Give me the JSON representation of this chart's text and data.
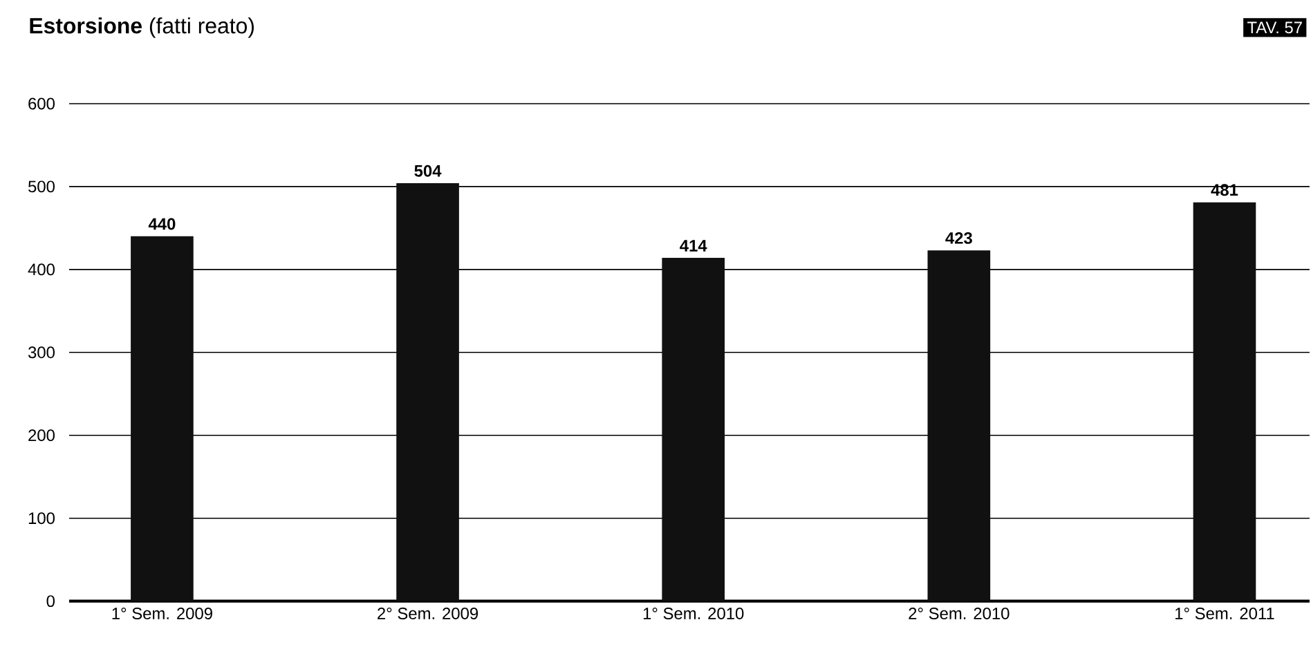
{
  "chart_data": {
    "type": "bar",
    "title": "**Estorsione** (fatti reato)",
    "annotations": [
      "TAV. 57"
    ],
    "categories": [
      "1° Sem. 2009",
      "2° Sem. 2009",
      "1° Sem. 2010",
      "2° Sem. 2010",
      "1° Sem. 2011"
    ],
    "values": [
      440,
      504,
      414,
      423,
      481
    ],
    "color": "#111111",
    "ylim": [
      0,
      600
    ],
    "yticks": [
      0,
      100,
      200,
      300,
      400,
      500,
      600
    ],
    "grid": "y",
    "data_labels": true
  }
}
